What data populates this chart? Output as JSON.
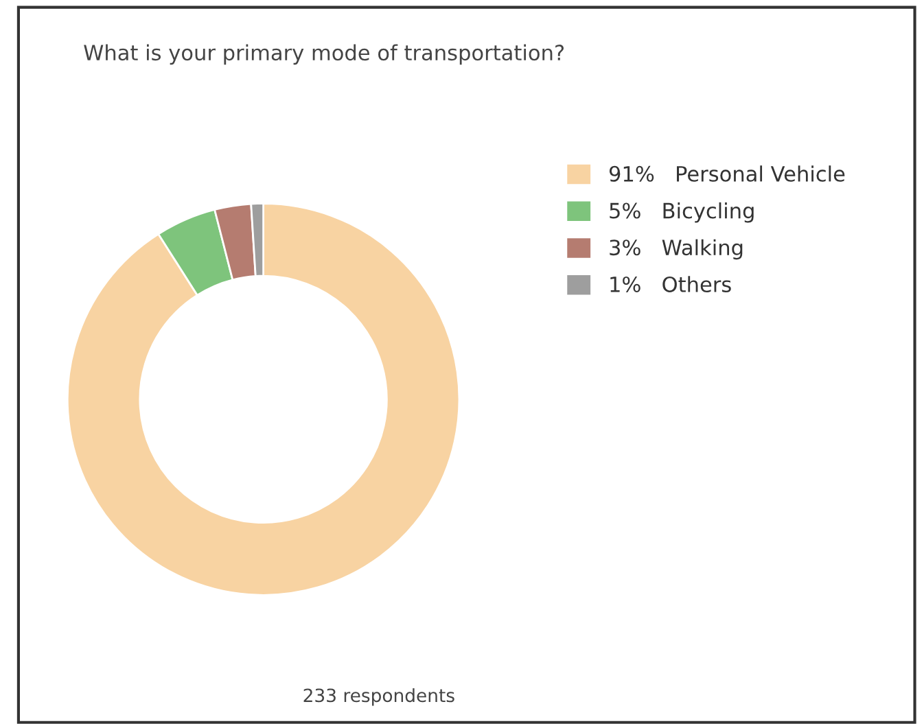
{
  "chart_data": {
    "type": "donut",
    "title": "What is your primary mode of transportation?",
    "categories": [
      "Personal Vehicle",
      "Bicycling",
      "Walking",
      "Others"
    ],
    "values": [
      91,
      5,
      3,
      1
    ],
    "colors": [
      "#f8d3a2",
      "#7ec47c",
      "#b57c70",
      "#9e9e9e"
    ],
    "value_labels": [
      "91%",
      "5%",
      "3%",
      "1%"
    ],
    "legend": "right",
    "annotations": [
      "233 respondents"
    ]
  }
}
